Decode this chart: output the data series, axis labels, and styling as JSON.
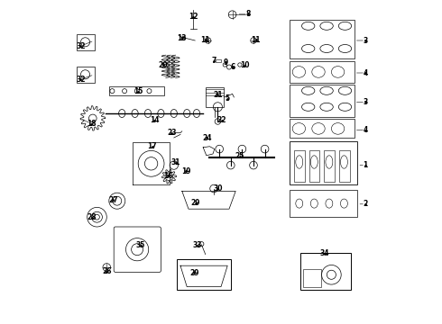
{
  "title": "",
  "background_color": "#ffffff",
  "border_color": "#000000",
  "fig_width": 4.9,
  "fig_height": 3.6,
  "dpi": 100,
  "line_color": "#000000",
  "label_fontsize": 5.5,
  "label_color": "#000000"
}
